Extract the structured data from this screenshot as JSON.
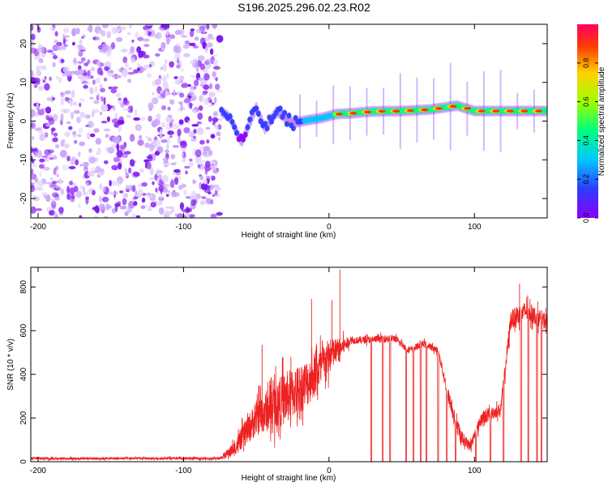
{
  "title": "S196.2025.296.02.23.R02",
  "chart_data": [
    {
      "type": "heatmap",
      "panel": "spectrogram",
      "xlabel": "Height of straight line (km)",
      "ylabel": "Frequency (Hz)",
      "xlim": [
        -205,
        150
      ],
      "ylim": [
        -25,
        25
      ],
      "xticks": [
        -200,
        -100,
        0,
        100
      ],
      "yticks": [
        -20,
        -10,
        0,
        10,
        20
      ],
      "colorbar": {
        "label": "Normalized spectral amplitude",
        "range": [
          0,
          1
        ],
        "ticks": [
          0.0,
          0.2,
          0.4,
          0.6,
          0.8
        ],
        "colormap": [
          "#8a00ff",
          "#2f3cff",
          "#00c8ff",
          "#00ff80",
          "#a0ff00",
          "#ffd000",
          "#ff4000",
          "#ff0060"
        ]
      },
      "noise_region_x": [
        -205,
        -75
      ],
      "ridge": {
        "name": "dominant frequency track",
        "points": [
          {
            "x": -74,
            "f": 2.5,
            "amp": 0.4
          },
          {
            "x": -68,
            "f": 0.8,
            "amp": 0.3
          },
          {
            "x": -60,
            "f": -5.5,
            "amp": 0.2
          },
          {
            "x": -50,
            "f": 3.5,
            "amp": 0.3
          },
          {
            "x": -44,
            "f": -2.0,
            "amp": 0.25
          },
          {
            "x": -36,
            "f": 2.5,
            "amp": 0.3
          },
          {
            "x": -25,
            "f": -0.5,
            "amp": 0.4
          },
          {
            "x": -15,
            "f": 0.2,
            "amp": 0.5
          },
          {
            "x": -5,
            "f": 0.8,
            "amp": 0.6
          },
          {
            "x": 5,
            "f": 1.8,
            "amp": 0.75
          },
          {
            "x": 15,
            "f": 2.0,
            "amp": 0.85
          },
          {
            "x": 30,
            "f": 2.5,
            "amp": 0.9
          },
          {
            "x": 50,
            "f": 2.6,
            "amp": 0.95
          },
          {
            "x": 70,
            "f": 3.0,
            "amp": 0.95
          },
          {
            "x": 88,
            "f": 4.0,
            "amp": 0.9
          },
          {
            "x": 100,
            "f": 2.6,
            "amp": 0.95
          },
          {
            "x": 125,
            "f": 2.6,
            "amp": 0.95
          },
          {
            "x": 150,
            "f": 2.6,
            "amp": 0.95
          }
        ]
      }
    },
    {
      "type": "line",
      "panel": "snr",
      "xlabel": "Height of straight line (km)",
      "ylabel": "SNR (10 * v/v)",
      "xlim": [
        -205,
        150
      ],
      "ylim": [
        0,
        890
      ],
      "xticks": [
        -200,
        -100,
        0,
        100
      ],
      "yticks": [
        0,
        200,
        400,
        600,
        800
      ],
      "color": "#ee2222",
      "series": [
        {
          "name": "SNR",
          "envelope": [
            {
              "x": -205,
              "base": 15,
              "jitter": 10
            },
            {
              "x": -75,
              "base": 15,
              "jitter": 10
            },
            {
              "x": -65,
              "base": 60,
              "jitter": 60
            },
            {
              "x": -50,
              "base": 200,
              "jitter": 150
            },
            {
              "x": -30,
              "base": 290,
              "jitter": 220
            },
            {
              "x": -15,
              "base": 360,
              "jitter": 200
            },
            {
              "x": 0,
              "base": 480,
              "jitter": 150
            },
            {
              "x": 15,
              "base": 555,
              "jitter": 30
            },
            {
              "x": 45,
              "base": 565,
              "jitter": 30
            },
            {
              "x": 55,
              "base": 510,
              "jitter": 25
            },
            {
              "x": 65,
              "base": 540,
              "jitter": 30
            },
            {
              "x": 75,
              "base": 510,
              "jitter": 25
            },
            {
              "x": 82,
              "base": 300,
              "jitter": 60
            },
            {
              "x": 90,
              "base": 120,
              "jitter": 60
            },
            {
              "x": 97,
              "base": 70,
              "jitter": 40
            },
            {
              "x": 105,
              "base": 200,
              "jitter": 60
            },
            {
              "x": 118,
              "base": 240,
              "jitter": 50
            },
            {
              "x": 125,
              "base": 650,
              "jitter": 80
            },
            {
              "x": 135,
              "base": 690,
              "jitter": 80
            },
            {
              "x": 150,
              "base": 640,
              "jitter": 70
            }
          ],
          "spikes": [
            {
              "x": 7.5,
              "y": 880
            },
            {
              "x": -12,
              "y": 745
            },
            {
              "x": 2,
              "y": 740
            },
            {
              "x": 131,
              "y": 815
            },
            {
              "x": -46,
              "y": 535
            }
          ],
          "dropouts": [
            29,
            37,
            42,
            53,
            58,
            63,
            67,
            75,
            81,
            87,
            101,
            111,
            120,
            132,
            137,
            143,
            146
          ]
        }
      ]
    }
  ]
}
